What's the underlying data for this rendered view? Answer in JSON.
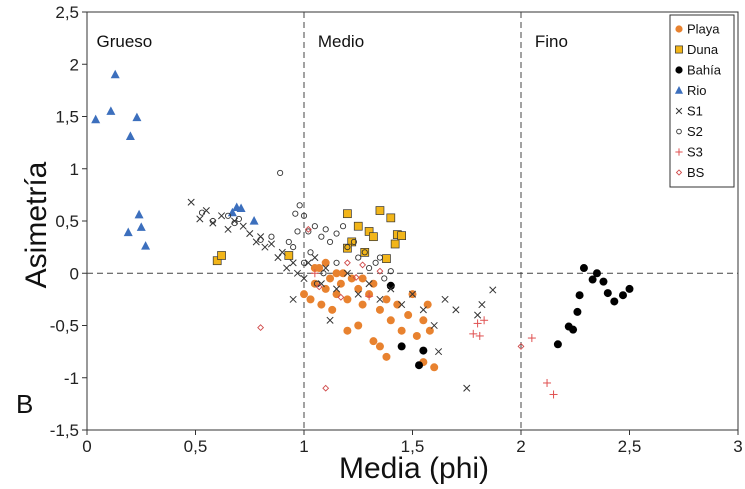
{
  "chart_data": {
    "type": "scatter",
    "title": "",
    "xlabel": "Media (phi)",
    "ylabel": "Asimetría",
    "panel_label": "B",
    "xlim": [
      0,
      3
    ],
    "ylim": [
      -1.5,
      2.5
    ],
    "x_ticks": [
      "0",
      "0,5",
      "1",
      "1,5",
      "2",
      "2,5",
      "3"
    ],
    "y_ticks": [
      "2,5",
      "2",
      "1,5",
      "1",
      "0,5",
      "0",
      "-0,5",
      "-1",
      "-1,5"
    ],
    "grid": false,
    "legend_position": "top-right",
    "regions": [
      {
        "label": "Grueso",
        "x": 0.03
      },
      {
        "label": "Medio",
        "x": 1.05
      },
      {
        "label": "Fino",
        "x": 2.05
      }
    ],
    "reference_lines": {
      "x": [
        1,
        2
      ],
      "y": [
        0
      ]
    },
    "series": [
      {
        "name": "Playa",
        "marker": "circle-filled",
        "color": "#e8822f",
        "points": [
          [
            1.0,
            -0.2
          ],
          [
            1.03,
            -0.25
          ],
          [
            1.05,
            -0.1
          ],
          [
            1.07,
            0.05
          ],
          [
            1.08,
            -0.3
          ],
          [
            1.1,
            -0.15
          ],
          [
            1.12,
            -0.05
          ],
          [
            1.13,
            -0.35
          ],
          [
            1.15,
            -0.2
          ],
          [
            1.17,
            -0.1
          ],
          [
            1.18,
            0.0
          ],
          [
            1.2,
            -0.25
          ],
          [
            1.22,
            -0.05
          ],
          [
            1.25,
            -0.15
          ],
          [
            1.27,
            -0.3
          ],
          [
            1.3,
            -0.2
          ],
          [
            1.32,
            -0.1
          ],
          [
            1.35,
            -0.35
          ],
          [
            1.38,
            -0.25
          ],
          [
            1.4,
            -0.45
          ],
          [
            1.43,
            -0.3
          ],
          [
            1.45,
            -0.55
          ],
          [
            1.48,
            -0.4
          ],
          [
            1.5,
            -0.2
          ],
          [
            1.52,
            -0.6
          ],
          [
            1.55,
            -0.45
          ],
          [
            1.57,
            -0.3
          ],
          [
            1.58,
            -0.55
          ],
          [
            1.6,
            -0.9
          ],
          [
            1.55,
            -0.85
          ],
          [
            1.2,
            -0.55
          ],
          [
            1.25,
            -0.5
          ],
          [
            1.32,
            -0.65
          ],
          [
            1.35,
            -0.7
          ],
          [
            1.38,
            -0.8
          ],
          [
            1.1,
            0.1
          ],
          [
            1.15,
            0.0
          ],
          [
            1.05,
            0.05
          ],
          [
            1.27,
            -0.05
          ]
        ]
      },
      {
        "name": "Duna",
        "marker": "square-filled",
        "color": "#f2b519",
        "points": [
          [
            0.6,
            0.12
          ],
          [
            0.62,
            0.17
          ],
          [
            0.93,
            0.17
          ],
          [
            1.2,
            0.57
          ],
          [
            1.22,
            0.3
          ],
          [
            1.25,
            0.45
          ],
          [
            1.28,
            0.2
          ],
          [
            1.3,
            0.4
          ],
          [
            1.32,
            0.35
          ],
          [
            1.35,
            0.6
          ],
          [
            1.38,
            0.14
          ],
          [
            1.4,
            0.53
          ],
          [
            1.42,
            0.28
          ],
          [
            1.43,
            0.37
          ],
          [
            1.45,
            0.36
          ],
          [
            1.2,
            0.24
          ]
        ]
      },
      {
        "name": "Bahía",
        "marker": "circle-filled",
        "color": "#000000",
        "points": [
          [
            1.4,
            -0.12
          ],
          [
            1.45,
            -0.7
          ],
          [
            1.53,
            -0.88
          ],
          [
            1.55,
            -0.74
          ],
          [
            2.17,
            -0.68
          ],
          [
            2.22,
            -0.51
          ],
          [
            2.24,
            -0.54
          ],
          [
            2.26,
            -0.37
          ],
          [
            2.27,
            -0.21
          ],
          [
            2.29,
            0.05
          ],
          [
            2.33,
            -0.06
          ],
          [
            2.35,
            0.0
          ],
          [
            2.38,
            -0.08
          ],
          [
            2.4,
            -0.19
          ],
          [
            2.43,
            -0.27
          ],
          [
            2.47,
            -0.21
          ],
          [
            2.5,
            -0.15
          ]
        ]
      },
      {
        "name": "Rio",
        "marker": "triangle-filled",
        "color": "#3c6fbd",
        "points": [
          [
            0.04,
            1.47
          ],
          [
            0.11,
            1.55
          ],
          [
            0.13,
            1.9
          ],
          [
            0.2,
            1.31
          ],
          [
            0.23,
            1.49
          ],
          [
            0.19,
            0.39
          ],
          [
            0.24,
            0.56
          ],
          [
            0.25,
            0.44
          ],
          [
            0.27,
            0.26
          ],
          [
            0.67,
            0.58
          ],
          [
            0.69,
            0.63
          ],
          [
            0.71,
            0.62
          ],
          [
            0.77,
            0.5
          ]
        ]
      },
      {
        "name": "S1",
        "marker": "cross",
        "color": "#333333",
        "points": [
          [
            0.48,
            0.68
          ],
          [
            0.52,
            0.52
          ],
          [
            0.55,
            0.6
          ],
          [
            0.58,
            0.48
          ],
          [
            0.62,
            0.55
          ],
          [
            0.65,
            0.42
          ],
          [
            0.68,
            0.5
          ],
          [
            0.72,
            0.45
          ],
          [
            0.75,
            0.38
          ],
          [
            0.78,
            0.3
          ],
          [
            0.8,
            0.35
          ],
          [
            0.82,
            0.25
          ],
          [
            0.85,
            0.28
          ],
          [
            0.88,
            0.15
          ],
          [
            0.9,
            0.2
          ],
          [
            0.92,
            0.05
          ],
          [
            0.95,
            0.1
          ],
          [
            0.97,
            0.0
          ],
          [
            1.0,
            -0.05
          ],
          [
            1.02,
            0.1
          ],
          [
            1.05,
            0.15
          ],
          [
            1.08,
            -0.1
          ],
          [
            1.1,
            0.05
          ],
          [
            1.15,
            -0.15
          ],
          [
            1.2,
            0.0
          ],
          [
            1.25,
            -0.2
          ],
          [
            1.3,
            -0.1
          ],
          [
            1.35,
            -0.25
          ],
          [
            1.4,
            -0.15
          ],
          [
            1.45,
            -0.3
          ],
          [
            1.5,
            -0.2
          ],
          [
            1.55,
            -0.35
          ],
          [
            1.6,
            -0.5
          ],
          [
            1.65,
            -0.25
          ],
          [
            1.7,
            -0.35
          ],
          [
            1.75,
            -1.1
          ],
          [
            1.8,
            -0.4
          ],
          [
            1.82,
            -0.3
          ],
          [
            1.87,
            -0.16
          ],
          [
            1.62,
            -0.75
          ],
          [
            0.95,
            -0.25
          ],
          [
            1.12,
            -0.45
          ]
        ]
      },
      {
        "name": "S2",
        "marker": "circle-open",
        "color": "#333333",
        "points": [
          [
            0.53,
            0.58
          ],
          [
            0.58,
            0.5
          ],
          [
            0.65,
            0.55
          ],
          [
            0.68,
            0.48
          ],
          [
            0.7,
            0.52
          ],
          [
            0.8,
            0.32
          ],
          [
            0.85,
            0.35
          ],
          [
            0.89,
            0.96
          ],
          [
            0.95,
            0.25
          ],
          [
            0.96,
            0.57
          ],
          [
            0.98,
            0.65
          ],
          [
            1.0,
            0.55
          ],
          [
            1.02,
            0.4
          ],
          [
            1.05,
            0.45
          ],
          [
            1.08,
            0.35
          ],
          [
            1.1,
            0.42
          ],
          [
            1.12,
            0.3
          ],
          [
            1.15,
            0.38
          ],
          [
            1.18,
            0.45
          ],
          [
            1.2,
            0.25
          ],
          [
            1.23,
            0.3
          ],
          [
            1.25,
            0.15
          ],
          [
            1.28,
            0.2
          ],
          [
            1.3,
            0.05
          ],
          [
            1.33,
            0.1
          ],
          [
            1.35,
            0.15
          ],
          [
            1.37,
            -0.05
          ],
          [
            1.4,
            0.02
          ],
          [
            1.0,
            0.1
          ],
          [
            1.03,
            0.2
          ],
          [
            1.06,
            -0.1
          ],
          [
            1.09,
            0.0
          ],
          [
            0.97,
            0.4
          ],
          [
            0.93,
            0.3
          ],
          [
            1.15,
            0.1
          ]
        ]
      },
      {
        "name": "S3",
        "marker": "plus",
        "color": "#e05050",
        "points": [
          [
            1.78,
            -0.58
          ],
          [
            1.8,
            -0.48
          ],
          [
            1.81,
            -0.6
          ],
          [
            1.83,
            -0.45
          ],
          [
            2.05,
            -0.62
          ],
          [
            2.12,
            -1.05
          ],
          [
            2.15,
            -1.16
          ],
          [
            1.3,
            -0.22
          ],
          [
            1.05,
            0.0
          ]
        ]
      },
      {
        "name": "BS",
        "marker": "diamond-open",
        "color": "#d04a4a",
        "points": [
          [
            0.8,
            -0.52
          ],
          [
            1.1,
            -1.1
          ],
          [
            1.2,
            0.1
          ],
          [
            1.24,
            -0.04
          ],
          [
            1.27,
            0.08
          ],
          [
            1.02,
            0.42
          ],
          [
            1.07,
            -0.13
          ],
          [
            1.17,
            -0.23
          ],
          [
            2.0,
            -0.7
          ],
          [
            1.35,
            0.02
          ]
        ]
      }
    ]
  }
}
